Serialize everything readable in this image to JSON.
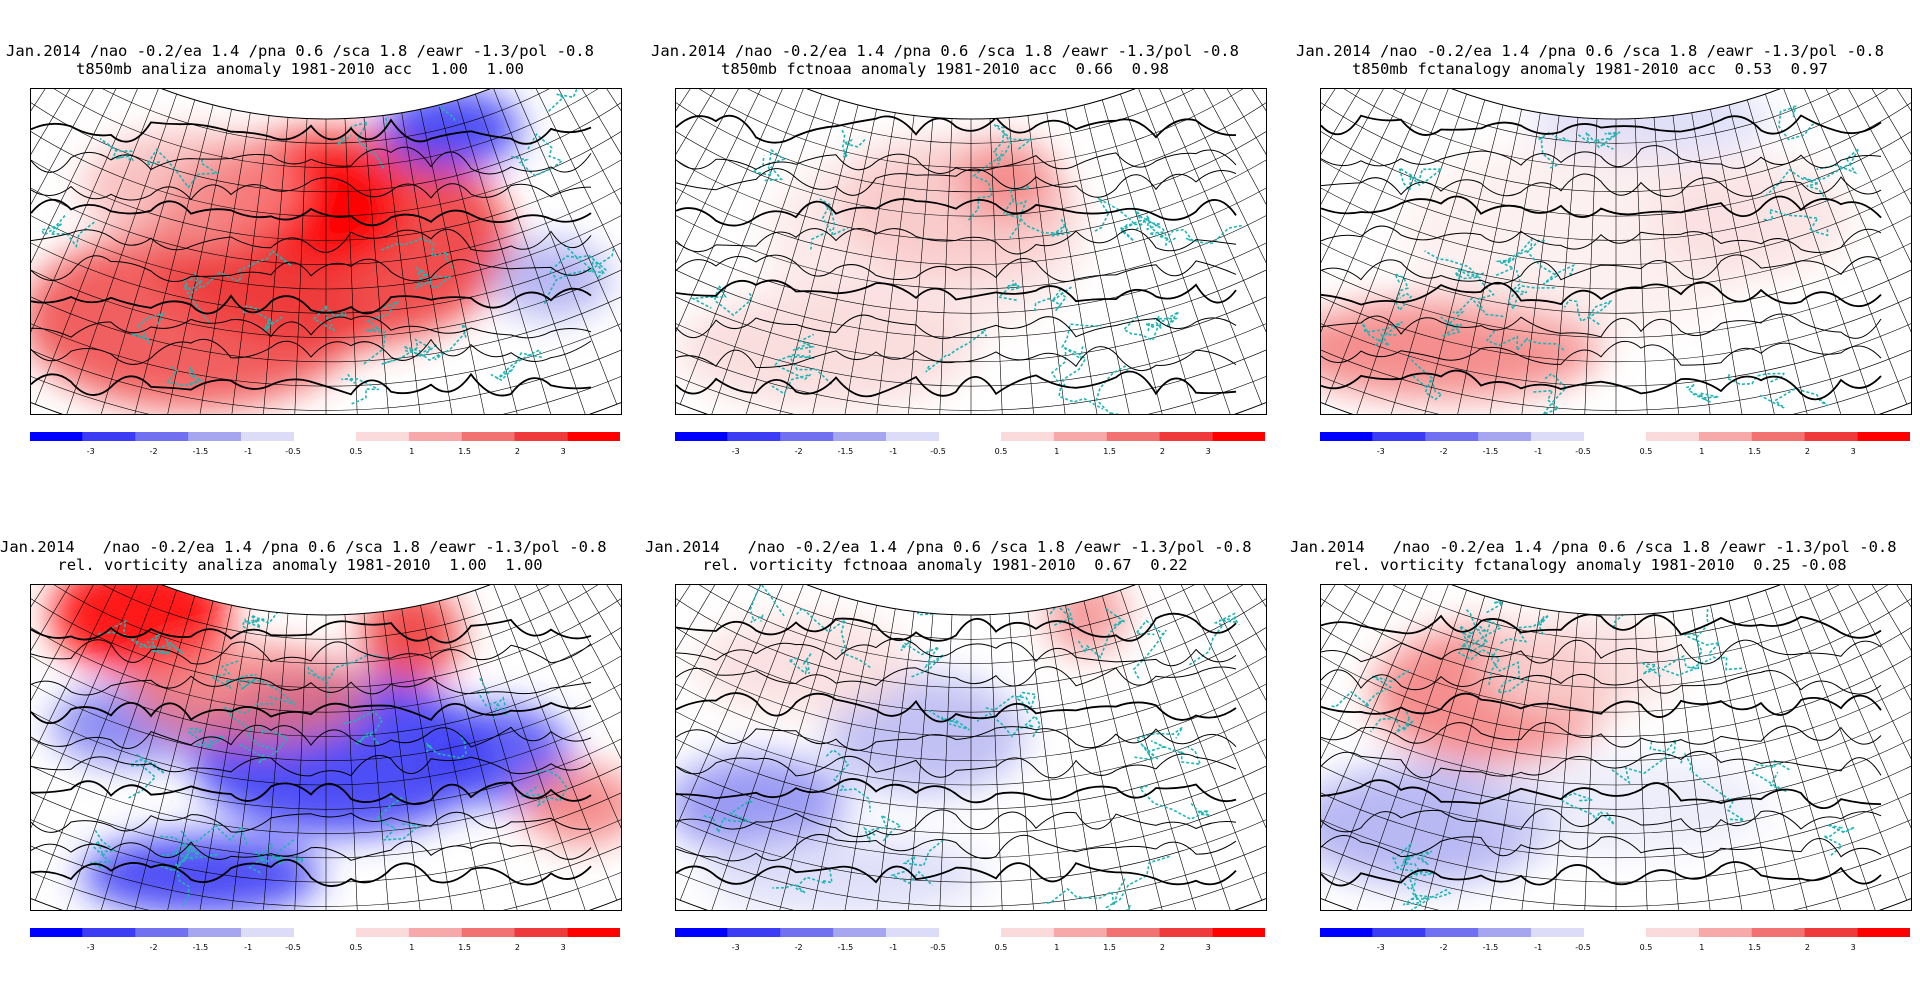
{
  "colorbar": {
    "negative_labels": [
      "-3",
      "-2",
      "-1.5",
      "-1",
      "-0.5"
    ],
    "positive_labels": [
      "0.5",
      "1",
      "1.5",
      "2",
      "3"
    ],
    "negative_colors": [
      "#0000ff",
      "#3c3cf5",
      "#7070f0",
      "#a6a6f0",
      "#dcdcf8"
    ],
    "positive_colors": [
      "#fadada",
      "#f7a8a8",
      "#f27272",
      "#ee3a3a",
      "#ff0000"
    ]
  },
  "panels": [
    {
      "id": "p1",
      "title_line1": "Jan.2014 /nao -0.2/ea 1.4 /pna 0.6 /sca 1.8 /eawr -1.3/pol -0.8",
      "title_line2": "t850mb analiza anomaly 1981-2010 acc  1.00  1.00",
      "variable": "t850mb",
      "source": "analiza",
      "acc": [
        "1.00",
        "1.00"
      ]
    },
    {
      "id": "p2",
      "title_line1": "Jan.2014 /nao -0.2/ea 1.4 /pna 0.6 /sca 1.8 /eawr -1.3/pol -0.8",
      "title_line2": "t850mb fctnoaa anomaly 1981-2010 acc  0.66  0.98",
      "variable": "t850mb",
      "source": "fctnoaa",
      "acc": [
        "0.66",
        "0.98"
      ]
    },
    {
      "id": "p3",
      "title_line1": "Jan.2014 /nao -0.2/ea 1.4 /pna 0.6 /sca 1.8 /eawr -1.3/pol -0.8",
      "title_line2": "t850mb fctanalogy anomaly 1981-2010 acc  0.53  0.97",
      "variable": "t850mb",
      "source": "fctanalogy",
      "acc": [
        "0.53",
        "0.97"
      ]
    },
    {
      "id": "p4",
      "title_line1": "Jan.2014   /nao -0.2/ea 1.4 /pna 0.6 /sca 1.8 /eawr -1.3/pol -0.8",
      "title_line2": "rel. vorticity analiza anomaly 1981-2010  1.00  1.00",
      "variable": "rel. vorticity",
      "source": "analiza",
      "acc": [
        "1.00",
        "1.00"
      ]
    },
    {
      "id": "p5",
      "title_line1": "Jan.2014   /nao -0.2/ea 1.4 /pna 0.6 /sca 1.8 /eawr -1.3/pol -0.8",
      "title_line2": "rel. vorticity fctnoaa anomaly 1981-2010  0.67  0.22",
      "variable": "rel. vorticity",
      "source": "fctnoaa",
      "acc": [
        "0.67",
        "0.22"
      ]
    },
    {
      "id": "p6",
      "title_line1": "Jan.2014   /nao -0.2/ea 1.4 /pna 0.6 /sca 1.8 /eawr -1.3/pol -0.8",
      "title_line2": "rel. vorticity fctanalogy anomaly 1981-2010  0.25 -0.08",
      "variable": "rel. vorticity",
      "source": "fctanalogy",
      "acc": [
        "0.25",
        "-0.08"
      ]
    }
  ]
}
